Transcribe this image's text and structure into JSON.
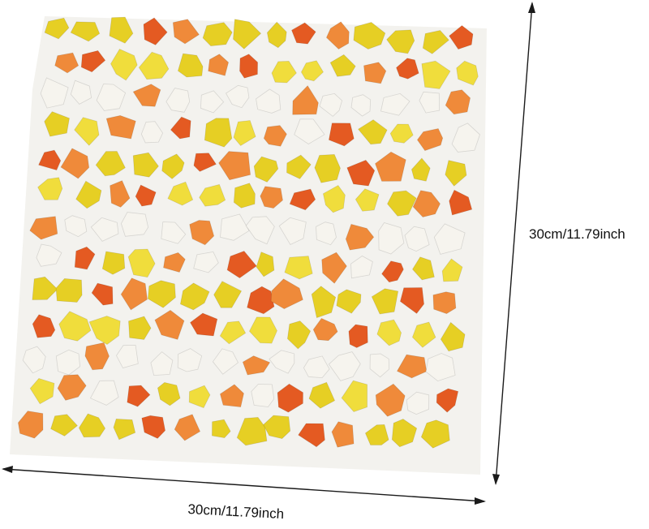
{
  "dimensions": {
    "height_label": "30cm/11.79inch",
    "width_label": "30cm/11.79inch"
  },
  "palette": {
    "white": "#f6f4ee",
    "yellow": "#e6cf24",
    "light_yellow": "#f0dd3c",
    "orange": "#ef8a3a",
    "red_orange": "#e45a22",
    "mesh": "#e9e7e0",
    "arrow": "#1a1a1a"
  },
  "colors": [
    "yellow",
    "orange",
    "white",
    "yellow",
    "red_orange",
    "light_yellow",
    "orange",
    "white",
    "yellow",
    "red_orange",
    "white",
    "light_yellow",
    "orange",
    "yellow",
    "white",
    "red_orange",
    "yellow",
    "light_yellow",
    "white",
    "orange"
  ]
}
